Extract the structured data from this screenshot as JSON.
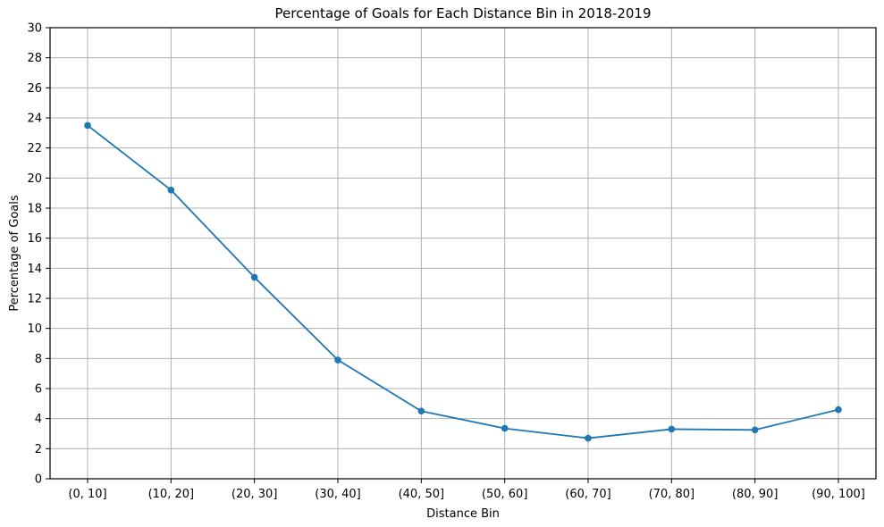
{
  "chart_data": {
    "type": "line",
    "title": "Percentage of Goals for Each Distance Bin in 2018-2019",
    "xlabel": "Distance Bin",
    "ylabel": "Percentage of Goals",
    "categories": [
      "(0, 10]",
      "(10, 20]",
      "(20, 30]",
      "(30, 40]",
      "(40, 50]",
      "(50, 60]",
      "(60, 70]",
      "(70, 80]",
      "(80, 90]",
      "(90, 100]"
    ],
    "values": [
      23.5,
      19.2,
      13.4,
      7.9,
      4.5,
      3.35,
      2.7,
      3.3,
      3.25,
      4.6
    ],
    "ylim": [
      0,
      30
    ],
    "yticks": [
      0,
      2,
      4,
      6,
      8,
      10,
      12,
      14,
      16,
      18,
      20,
      22,
      24,
      26,
      28,
      30
    ],
    "grid": true,
    "legend": "none",
    "line_color": "#1f77b4",
    "marker": "circle",
    "marker_radius": 3.8,
    "grid_color": "#b0b0b0",
    "background": "#ffffff"
  }
}
